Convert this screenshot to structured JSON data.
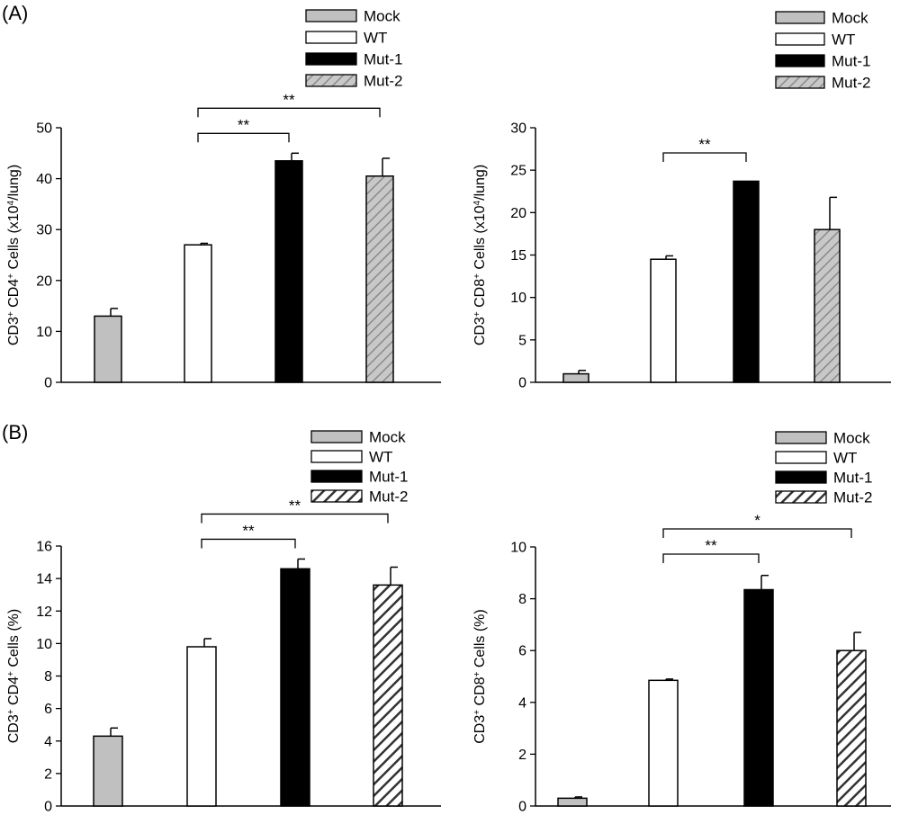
{
  "panels": {
    "A": "(A)",
    "B": "(B)"
  },
  "colors": {
    "mock_fill": "#c0c0c0",
    "wt_fill": "#ffffff",
    "mut1_fill": "#000000",
    "mut2_fill_light": "#c8c8c8",
    "mut2_fill_dark": "#8c8c8c",
    "stroke": "#000000"
  },
  "chart_data": [
    {
      "type": "bar",
      "panel": "(A)",
      "categories": [
        "Mock",
        "WT",
        "Mut-1",
        "Mut-2"
      ],
      "legend": [
        "Mock",
        "WT",
        "Mut-1",
        "Mut-2"
      ],
      "values": [
        13.0,
        27.0,
        43.5,
        40.5
      ],
      "errors": [
        1.5,
        0.3,
        1.5,
        3.5
      ],
      "ylim": [
        0,
        50
      ],
      "yticks": [
        0,
        10,
        20,
        30,
        40,
        50
      ],
      "ylabel": "CD3+ CD4+ Cells (x10⁴/lung)",
      "grid": false,
      "legend_position": "top-right",
      "hatch": "light",
      "significance": [
        {
          "from": "WT",
          "to": "Mut-1",
          "label": "**"
        },
        {
          "from": "WT",
          "to": "Mut-2",
          "label": "**"
        }
      ]
    },
    {
      "type": "bar",
      "panel": "(A)",
      "categories": [
        "Mock",
        "WT",
        "Mut-1",
        "Mut-2"
      ],
      "legend": [
        "Mock",
        "WT",
        "Mut-1",
        "Mut-2"
      ],
      "values": [
        1.0,
        14.5,
        23.7,
        18.0
      ],
      "errors": [
        0.4,
        0.4,
        0.0,
        3.8
      ],
      "ylim": [
        0,
        30
      ],
      "yticks": [
        0,
        5,
        10,
        15,
        20,
        25,
        30
      ],
      "ylabel": "CD3+ CD8+ Cells (x10⁴/lung)",
      "grid": false,
      "legend_position": "top-right",
      "hatch": "light",
      "significance": [
        {
          "from": "WT",
          "to": "Mut-1",
          "label": "**"
        }
      ]
    },
    {
      "type": "bar",
      "panel": "(B)",
      "categories": [
        "Mock",
        "WT",
        "Mut-1",
        "Mut-2"
      ],
      "legend": [
        "Mock",
        "WT",
        "Mut-1",
        "Mut-2"
      ],
      "values": [
        4.3,
        9.8,
        14.6,
        13.6
      ],
      "errors": [
        0.5,
        0.5,
        0.6,
        1.1
      ],
      "ylim": [
        0,
        16
      ],
      "yticks": [
        0,
        2,
        4,
        6,
        8,
        10,
        12,
        14,
        16
      ],
      "ylabel": "CD3+ CD4+ Cells (%)",
      "grid": false,
      "legend_position": "top-right",
      "hatch": "dark",
      "significance": [
        {
          "from": "WT",
          "to": "Mut-1",
          "label": "**"
        },
        {
          "from": "WT",
          "to": "Mut-2",
          "label": "**"
        }
      ]
    },
    {
      "type": "bar",
      "panel": "(B)",
      "categories": [
        "Mock",
        "WT",
        "Mut-1",
        "Mut-2"
      ],
      "legend": [
        "Mock",
        "WT",
        "Mut-1",
        "Mut-2"
      ],
      "values": [
        0.3,
        4.85,
        8.35,
        6.0
      ],
      "errors": [
        0.05,
        0.05,
        0.55,
        0.7
      ],
      "ylim": [
        0,
        10
      ],
      "yticks": [
        0,
        2,
        4,
        6,
        8,
        10
      ],
      "ylabel": "CD3+ CD8+ Cells (%)",
      "grid": false,
      "legend_position": "top-right",
      "hatch": "dark",
      "significance": [
        {
          "from": "WT",
          "to": "Mut-1",
          "label": "**"
        },
        {
          "from": "WT",
          "to": "Mut-2",
          "label": "*"
        }
      ]
    }
  ]
}
